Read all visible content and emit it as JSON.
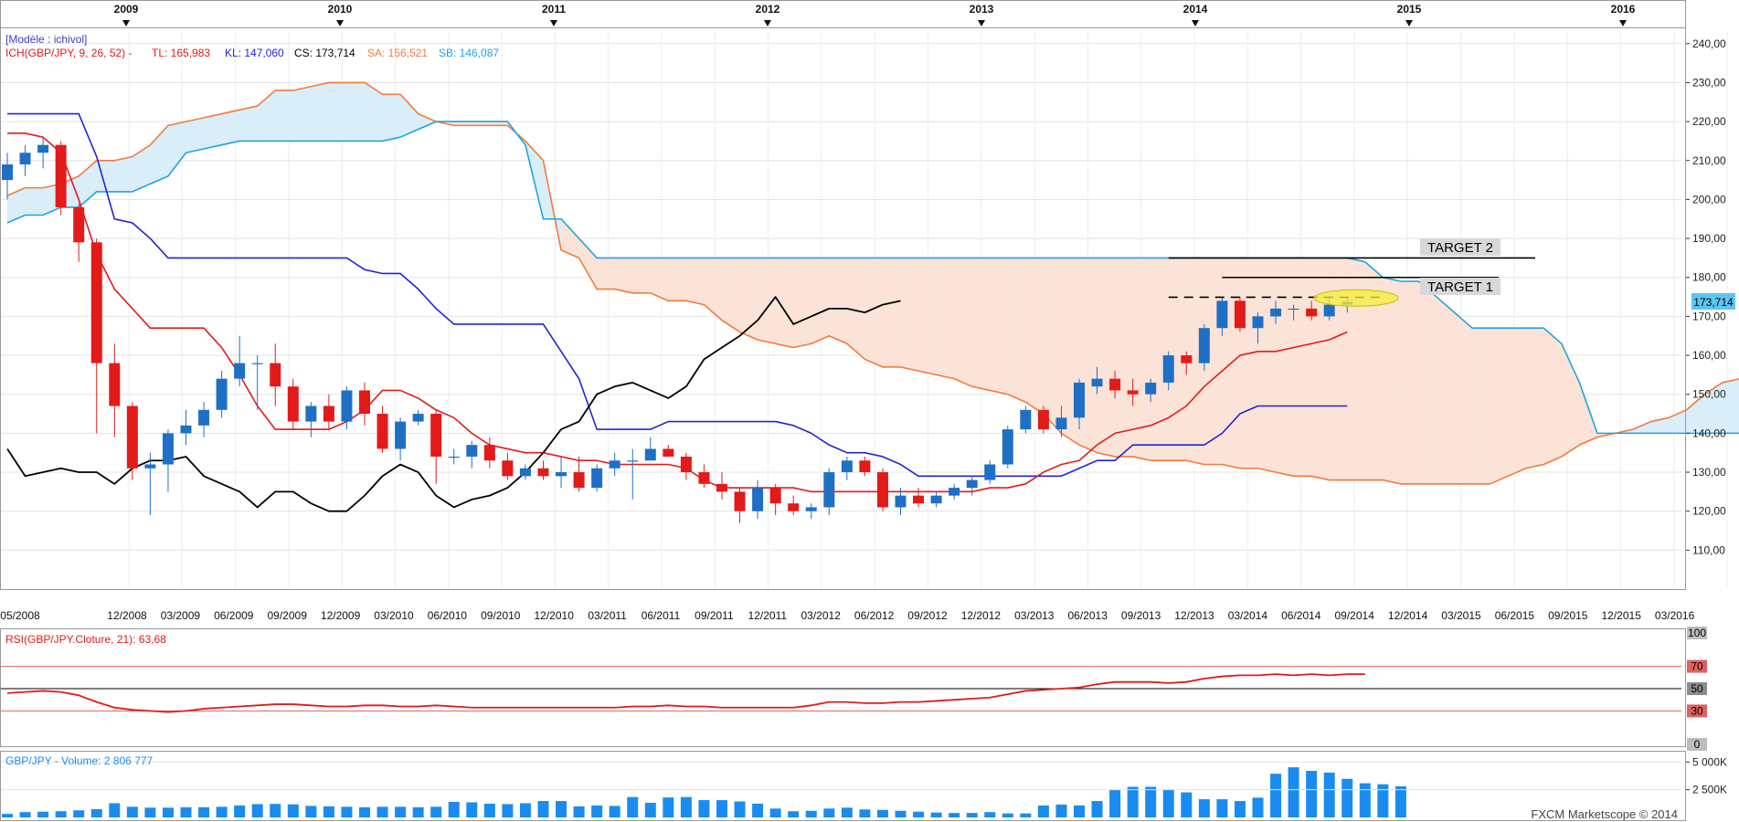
{
  "model_label": "[Modèle : ichivol]",
  "ichimoku": {
    "name": "ICH(GBP/JPY, 9, 26, 52) -",
    "tl_label": "TL: 165,983",
    "kl_label": "KL: 147,060",
    "cs_label": "CS: 173,714",
    "sa_label": "SA: 156,521",
    "sb_label": "SB: 146,087"
  },
  "price_badge": "173,714",
  "target1_label": "TARGET 1",
  "target2_label": "TARGET 2",
  "rsi_label": "RSI(GBP/JPY.Cloture, 21): 63,68",
  "volume_label": "GBP/JPY - Volume: 2 806 777",
  "copyright": "FXCM Marketscope © 2014",
  "colors": {
    "bull": "#1f6fc5",
    "bear": "#e31a1a",
    "tenkan": "#e31a1a",
    "kijun": "#2323d6",
    "chikou": "#000000",
    "span_a": "#f47a3c",
    "span_b": "#1ea4e0",
    "cloud_bull": "#d9eef9",
    "cloud_bear": "#fbe3d8",
    "rsi": "#e31a1a",
    "volume": "#1a8cf0"
  },
  "chart_data": [
    {
      "type": "candlestick",
      "title": "GBP/JPY",
      "year_labels": [
        "2009",
        "2010",
        "2011",
        "2012",
        "2013",
        "2014",
        "2015",
        "2016"
      ],
      "x_tick_labels": [
        "05/2008",
        "12/2008",
        "03/2009",
        "06/2009",
        "09/2009",
        "12/2009",
        "03/2010",
        "06/2010",
        "09/2010",
        "12/2010",
        "03/2011",
        "06/2011",
        "09/2011",
        "12/2011",
        "03/2012",
        "06/2012",
        "09/2012",
        "12/2012",
        "03/2013",
        "06/2013",
        "09/2013",
        "12/2013",
        "03/2014",
        "06/2014",
        "09/2014",
        "12/2014",
        "03/2015",
        "06/2015",
        "09/2015",
        "12/2015",
        "03/2016"
      ],
      "y_tick_labels": [
        "110,00",
        "120,00",
        "130,00",
        "140,00",
        "150,00",
        "160,00",
        "170,00",
        "180,00",
        "190,00",
        "200,00",
        "210,00",
        "220,00",
        "230,00",
        "240,00"
      ],
      "ylim": [
        100,
        243
      ],
      "candles": [
        {
          "o": 205,
          "h": 212,
          "l": 200,
          "c": 209
        },
        {
          "o": 209,
          "h": 214,
          "l": 206,
          "c": 212
        },
        {
          "o": 212,
          "h": 216,
          "l": 208,
          "c": 214
        },
        {
          "o": 214,
          "h": 215,
          "l": 196,
          "c": 198
        },
        {
          "o": 198,
          "h": 199,
          "l": 184,
          "c": 189
        },
        {
          "o": 189,
          "h": 190,
          "l": 140,
          "c": 158
        },
        {
          "o": 158,
          "h": 163,
          "l": 139,
          "c": 147
        },
        {
          "o": 147,
          "h": 148,
          "l": 128,
          "c": 131
        },
        {
          "o": 131,
          "h": 135,
          "l": 119,
          "c": 132
        },
        {
          "o": 132,
          "h": 141,
          "l": 125,
          "c": 140
        },
        {
          "o": 140,
          "h": 146,
          "l": 137,
          "c": 142
        },
        {
          "o": 142,
          "h": 148,
          "l": 139,
          "c": 146
        },
        {
          "o": 146,
          "h": 156,
          "l": 144,
          "c": 154
        },
        {
          "o": 154,
          "h": 165,
          "l": 152,
          "c": 158
        },
        {
          "o": 158,
          "h": 160,
          "l": 146,
          "c": 158
        },
        {
          "o": 158,
          "h": 163,
          "l": 147,
          "c": 152
        },
        {
          "o": 152,
          "h": 154,
          "l": 141,
          "c": 143
        },
        {
          "o": 143,
          "h": 148,
          "l": 139,
          "c": 147
        },
        {
          "o": 147,
          "h": 150,
          "l": 141,
          "c": 143
        },
        {
          "o": 143,
          "h": 152,
          "l": 141,
          "c": 151
        },
        {
          "o": 151,
          "h": 153,
          "l": 142,
          "c": 145
        },
        {
          "o": 145,
          "h": 147,
          "l": 135,
          "c": 136
        },
        {
          "o": 136,
          "h": 144,
          "l": 133,
          "c": 143
        },
        {
          "o": 143,
          "h": 146,
          "l": 142,
          "c": 145
        },
        {
          "o": 145,
          "h": 146,
          "l": 127,
          "c": 134
        },
        {
          "o": 134,
          "h": 136,
          "l": 132,
          "c": 134
        },
        {
          "o": 134,
          "h": 138,
          "l": 131,
          "c": 137
        },
        {
          "o": 137,
          "h": 139,
          "l": 131,
          "c": 133
        },
        {
          "o": 133,
          "h": 135,
          "l": 128,
          "c": 129
        },
        {
          "o": 129,
          "h": 132,
          "l": 128,
          "c": 131
        },
        {
          "o": 131,
          "h": 133,
          "l": 128,
          "c": 129
        },
        {
          "o": 129,
          "h": 134,
          "l": 126,
          "c": 130
        },
        {
          "o": 130,
          "h": 134,
          "l": 125,
          "c": 126
        },
        {
          "o": 126,
          "h": 132,
          "l": 125,
          "c": 131
        },
        {
          "o": 131,
          "h": 135,
          "l": 129,
          "c": 133
        },
        {
          "o": 133,
          "h": 136,
          "l": 123,
          "c": 133
        },
        {
          "o": 133,
          "h": 139,
          "l": 133,
          "c": 136
        },
        {
          "o": 136,
          "h": 137,
          "l": 134,
          "c": 134
        },
        {
          "o": 134,
          "h": 135,
          "l": 128,
          "c": 130
        },
        {
          "o": 130,
          "h": 132,
          "l": 126,
          "c": 127
        },
        {
          "o": 127,
          "h": 130,
          "l": 123,
          "c": 125
        },
        {
          "o": 125,
          "h": 126,
          "l": 117,
          "c": 120
        },
        {
          "o": 120,
          "h": 128,
          "l": 118,
          "c": 126
        },
        {
          "o": 126,
          "h": 127,
          "l": 119,
          "c": 122
        },
        {
          "o": 122,
          "h": 124,
          "l": 119,
          "c": 120
        },
        {
          "o": 120,
          "h": 122,
          "l": 118,
          "c": 121
        },
        {
          "o": 121,
          "h": 131,
          "l": 119,
          "c": 130
        },
        {
          "o": 130,
          "h": 134,
          "l": 128,
          "c": 133
        },
        {
          "o": 133,
          "h": 134,
          "l": 129,
          "c": 130
        },
        {
          "o": 130,
          "h": 131,
          "l": 120,
          "c": 121
        },
        {
          "o": 121,
          "h": 126,
          "l": 119,
          "c": 124
        },
        {
          "o": 124,
          "h": 126,
          "l": 121,
          "c": 122
        },
        {
          "o": 122,
          "h": 125,
          "l": 121,
          "c": 124
        },
        {
          "o": 124,
          "h": 127,
          "l": 123,
          "c": 126
        },
        {
          "o": 126,
          "h": 129,
          "l": 124,
          "c": 128
        },
        {
          "o": 128,
          "h": 133,
          "l": 127,
          "c": 132
        },
        {
          "o": 132,
          "h": 142,
          "l": 131,
          "c": 141
        },
        {
          "o": 141,
          "h": 147,
          "l": 140,
          "c": 146
        },
        {
          "o": 146,
          "h": 147,
          "l": 140,
          "c": 141
        },
        {
          "o": 141,
          "h": 147,
          "l": 139,
          "c": 144
        },
        {
          "o": 144,
          "h": 154,
          "l": 141,
          "c": 153
        },
        {
          "o": 152,
          "h": 157,
          "l": 150,
          "c": 154
        },
        {
          "o": 154,
          "h": 156,
          "l": 149,
          "c": 151
        },
        {
          "o": 151,
          "h": 154,
          "l": 147,
          "c": 150
        },
        {
          "o": 150,
          "h": 154,
          "l": 148,
          "c": 153
        },
        {
          "o": 153,
          "h": 161,
          "l": 151,
          "c": 160
        },
        {
          "o": 160,
          "h": 161,
          "l": 155,
          "c": 158
        },
        {
          "o": 158,
          "h": 168,
          "l": 156,
          "c": 167
        },
        {
          "o": 167,
          "h": 175,
          "l": 165,
          "c": 174
        },
        {
          "o": 174,
          "h": 175,
          "l": 166,
          "c": 167
        },
        {
          "o": 167,
          "h": 171,
          "l": 163,
          "c": 170
        },
        {
          "o": 170,
          "h": 174,
          "l": 168,
          "c": 172
        },
        {
          "o": 172,
          "h": 173,
          "l": 169,
          "c": 172
        },
        {
          "o": 172,
          "h": 174,
          "l": 169,
          "c": 170
        },
        {
          "o": 170,
          "h": 175,
          "l": 169,
          "c": 173
        },
        {
          "o": 173,
          "h": 175,
          "l": 171,
          "c": 173.7
        }
      ],
      "tenkan": [
        217,
        217,
        216,
        212,
        200,
        186,
        177,
        172,
        167,
        167,
        167,
        167,
        162,
        155,
        147,
        141,
        141,
        141,
        141,
        143,
        146,
        151,
        151,
        149,
        146,
        144,
        140,
        137,
        136,
        135,
        135,
        134,
        133,
        133,
        132,
        132,
        132,
        132,
        131,
        128,
        126,
        126,
        126,
        126,
        126,
        125,
        125,
        125,
        125,
        125,
        125,
        125,
        125,
        125,
        125,
        126,
        126,
        127,
        130,
        132,
        133,
        137,
        140,
        141,
        142,
        144,
        147,
        152,
        156,
        160,
        161,
        161,
        162,
        163,
        164,
        166
      ],
      "kijun": [
        222,
        222,
        222,
        222,
        222,
        211,
        195,
        194,
        190,
        185,
        185,
        185,
        185,
        185,
        185,
        185,
        185,
        185,
        185,
        185,
        182,
        181,
        181,
        177,
        172,
        168,
        168,
        168,
        168,
        168,
        168,
        161,
        154,
        141,
        141,
        141,
        141,
        143,
        143,
        143,
        143,
        143,
        143,
        143,
        142,
        140,
        137,
        135,
        135,
        134,
        132,
        129,
        129,
        129,
        129,
        129,
        129,
        129,
        129,
        129,
        131,
        133,
        133,
        137,
        137,
        137,
        137,
        137,
        140,
        145,
        147,
        147,
        147,
        147,
        147,
        147
      ],
      "chikou": [
        136,
        129,
        130,
        131,
        130,
        130,
        127,
        131,
        133,
        133,
        134,
        129,
        127,
        125,
        121,
        125,
        125,
        122,
        120,
        120,
        124,
        129,
        132,
        130,
        124,
        121,
        123,
        124,
        126,
        130,
        135,
        141,
        143,
        150,
        152,
        153,
        151,
        149,
        152,
        159,
        162,
        165,
        169,
        175,
        168,
        170,
        172,
        172,
        171,
        173,
        174
      ],
      "span_a": [
        201,
        203,
        203,
        204,
        206,
        210,
        210,
        211,
        214,
        219,
        220,
        221,
        222,
        223,
        224,
        228,
        228,
        229,
        230,
        230,
        230,
        227,
        227,
        222,
        220,
        219,
        219,
        219,
        219,
        215,
        210,
        187,
        185,
        177,
        177,
        176,
        176,
        174,
        174,
        173,
        169,
        166,
        164,
        163,
        162,
        163,
        165,
        163,
        159,
        157,
        157,
        156,
        155,
        154,
        152,
        151,
        150,
        148,
        145,
        140,
        137,
        135,
        134,
        134,
        133,
        133,
        133,
        132,
        132,
        131,
        131,
        130,
        129,
        129,
        128,
        128,
        128,
        128,
        127,
        127,
        127,
        127,
        127,
        127,
        129,
        131,
        132,
        134,
        137,
        139,
        140,
        141,
        143,
        144,
        146,
        150,
        153,
        154
      ],
      "span_b": [
        194,
        196,
        196,
        198,
        198,
        202,
        202,
        202,
        204,
        206,
        212,
        213,
        214,
        215,
        215,
        215,
        215,
        215,
        215,
        215,
        215,
        215,
        216,
        218,
        220,
        220,
        220,
        220,
        220,
        214,
        195,
        195,
        190,
        185,
        185,
        185,
        185,
        185,
        185,
        185,
        185,
        185,
        185,
        185,
        185,
        185,
        185,
        185,
        185,
        185,
        185,
        185,
        185,
        185,
        185,
        185,
        185,
        185,
        185,
        185,
        185,
        185,
        185,
        185,
        185,
        185,
        185,
        185,
        185,
        185,
        185,
        185,
        185,
        185,
        185,
        185,
        184,
        180,
        179,
        179,
        175,
        171,
        167,
        167,
        167,
        167,
        167,
        163,
        153,
        140,
        140,
        140,
        140,
        140,
        140,
        140,
        140,
        140,
        140,
        140,
        140,
        140,
        140,
        140,
        140,
        143,
        146,
        146
      ],
      "target_1": 180,
      "target_2": 185,
      "current_price": 173.714
    },
    {
      "type": "line",
      "title": "RSI(GBP/JPY.Cloture, 21)",
      "y_tick_labels": [
        "0",
        "30",
        "50",
        "70",
        "100"
      ],
      "ylim": [
        0,
        100
      ],
      "levels": [
        30,
        50,
        70
      ],
      "values": [
        46,
        47,
        48,
        47,
        44,
        38,
        33,
        31,
        30,
        29,
        30,
        32,
        33,
        34,
        35,
        36,
        36,
        35,
        34,
        34,
        35,
        35,
        34,
        34,
        35,
        34,
        33,
        33,
        33,
        33,
        33,
        33,
        33,
        33,
        33,
        34,
        34,
        35,
        34,
        34,
        33,
        33,
        33,
        33,
        33,
        35,
        38,
        38,
        37,
        37,
        38,
        38,
        39,
        40,
        41,
        42,
        45,
        48,
        49,
        50,
        51,
        54,
        56,
        56,
        56,
        55,
        56,
        59,
        61,
        62,
        62,
        63,
        62,
        63,
        62,
        63,
        63
      ]
    },
    {
      "type": "bar",
      "title": "GBP/JPY - Volume",
      "y_tick_labels": [
        "2 500K",
        "5 000K"
      ],
      "ylim": [
        0,
        5600
      ],
      "values": [
        320,
        480,
        520,
        560,
        640,
        740,
        1280,
        960,
        880,
        880,
        920,
        920,
        960,
        1080,
        1200,
        1220,
        1180,
        1040,
        1000,
        960,
        920,
        960,
        960,
        920,
        960,
        1400,
        1360,
        1240,
        1200,
        1280,
        1480,
        1480,
        1000,
        1080,
        1040,
        1840,
        1320,
        1800,
        1840,
        1560,
        1560,
        1440,
        1240,
        800,
        560,
        600,
        800,
        880,
        720,
        680,
        600,
        520,
        440,
        400,
        400,
        480,
        360,
        360,
        1080,
        1160,
        1080,
        1480,
        2480,
        2760,
        2760,
        2480,
        2260,
        1640,
        1640,
        1480,
        1780,
        3940,
        4520,
        4200,
        4040,
        3480,
        3080,
        2990,
        2806.8
      ]
    }
  ]
}
